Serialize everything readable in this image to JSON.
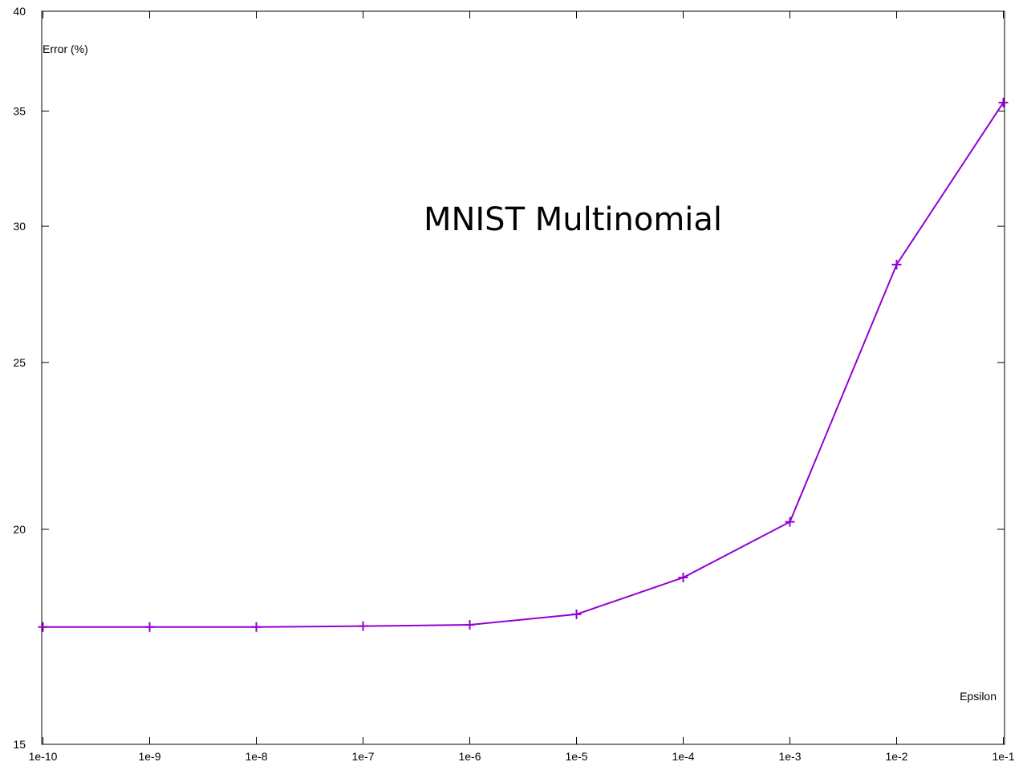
{
  "chart_data": {
    "type": "line",
    "title": "MNIST Multinomial",
    "xlabel": "Epsilon",
    "ylabel": "Error (%)",
    "x_scale": "log",
    "y_scale": "log",
    "x_ticks": [
      "1e-10",
      "1e-9",
      "1e-8",
      "1e-7",
      "1e-6",
      "1e-5",
      "1e-4",
      "1e-3",
      "1e-2",
      "1e-1"
    ],
    "y_ticks": [
      15,
      20,
      25,
      30,
      35,
      40
    ],
    "ylim": [
      15,
      40
    ],
    "grid": false,
    "series": [
      {
        "color": "#9400d3",
        "marker": "plus",
        "x": [
          1e-10,
          1e-09,
          1e-08,
          1e-07,
          1e-06,
          1e-05,
          0.0001,
          0.001,
          0.01,
          0.1
        ],
        "values": [
          17.55,
          17.55,
          17.55,
          17.57,
          17.6,
          17.85,
          18.75,
          20.2,
          28.5,
          35.4
        ]
      }
    ]
  }
}
